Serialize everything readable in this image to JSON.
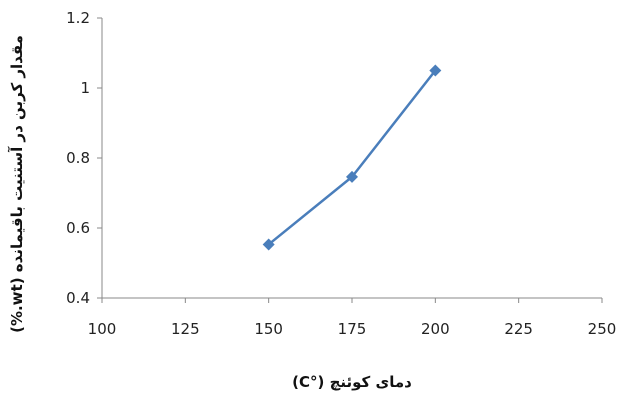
{
  "chart_data": {
    "type": "line",
    "title": "",
    "xlabel": "دمای کوئنچ (°C)",
    "ylabel": "مقدار کربن در آستنیت باقیمانده (wt.%)",
    "xlim": [
      100,
      250
    ],
    "ylim": [
      0.4,
      1.2
    ],
    "x_ticks": [
      100,
      125,
      150,
      175,
      200,
      225,
      250
    ],
    "y_ticks": [
      0.4,
      0.6,
      0.8,
      1,
      1.2
    ],
    "x_tick_labels": [
      "100",
      "125",
      "150",
      "175",
      "200",
      "225",
      "250"
    ],
    "y_tick_labels": [
      "0.4",
      "0.6",
      "0.8",
      "1",
      "1.2"
    ],
    "grid": false,
    "legend": "none",
    "series": [
      {
        "x": [
          150,
          175,
          200
        ],
        "values": [
          0.553,
          0.746,
          1.05
        ],
        "color": "#4a7ebb",
        "marker": "diamond"
      }
    ]
  }
}
